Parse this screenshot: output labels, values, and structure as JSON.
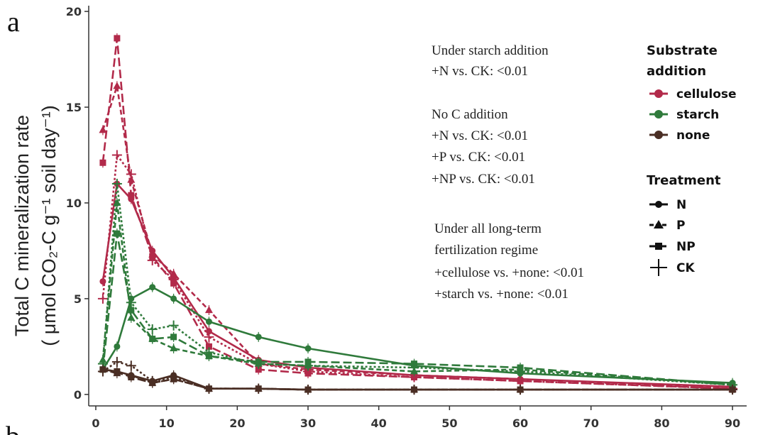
{
  "panel_label": "a",
  "next_panel_label": "b",
  "ylabel_line1": "Total C mineralization rate",
  "ylabel_line2": "( μmol CO₂-C g⁻¹ soil day⁻¹)",
  "annotations": [
    [
      "Under starch addition",
      "+N vs. CK: <0.01"
    ],
    [
      "No C addition",
      "+N vs. CK: <0.01",
      "+P vs. CK: <0.01",
      "+NP vs. CK: <0.01"
    ],
    [
      "Under all long-term",
      "fertilization regime",
      "+cellulose vs. +none: <0.01",
      "+starch vs. +none: <0.01"
    ]
  ],
  "legend": {
    "substrate_title_1": "Substrate",
    "substrate_title_2": "addition",
    "substrates": [
      {
        "label": "cellulose",
        "color": "#b22a4a"
      },
      {
        "label": "starch",
        "color": "#2f7a3b"
      },
      {
        "label": "none",
        "color": "#4a2e24"
      }
    ],
    "treatment_title": "Treatment",
    "treatments": [
      {
        "label": "N",
        "shape": "circle",
        "dash": "solid"
      },
      {
        "label": "P",
        "shape": "triangle",
        "dash": "short-dash"
      },
      {
        "label": "NP",
        "shape": "square",
        "dash": "long-dash"
      },
      {
        "label": "CK",
        "shape": "plus",
        "dash": "dotted"
      }
    ]
  },
  "chart_data": {
    "type": "line",
    "x": [
      1,
      3,
      5,
      8,
      11,
      16,
      23,
      30,
      45,
      60,
      90
    ],
    "xticks": [
      0,
      10,
      20,
      30,
      40,
      50,
      60,
      70,
      80,
      90
    ],
    "yticks": [
      0,
      5,
      10,
      15,
      20
    ],
    "xlim": [
      -1,
      92
    ],
    "ylim": [
      -0.6,
      20.3
    ],
    "grid": false,
    "legend_position": "right",
    "series": [
      {
        "substrate": "cellulose",
        "treatment": "N",
        "values": [
          5.9,
          11.0,
          10.2,
          7.5,
          6.1,
          3.3,
          1.8,
          1.4,
          1.0,
          0.8,
          0.4
        ]
      },
      {
        "substrate": "cellulose",
        "treatment": "P",
        "values": [
          13.8,
          16.1,
          11.2,
          7.3,
          6.3,
          4.4,
          1.6,
          1.3,
          1.0,
          0.8,
          0.3
        ]
      },
      {
        "substrate": "cellulose",
        "treatment": "NP",
        "values": [
          12.1,
          18.6,
          10.4,
          7.2,
          5.8,
          2.5,
          1.3,
          1.1,
          0.9,
          0.7,
          0.3
        ]
      },
      {
        "substrate": "cellulose",
        "treatment": "CK",
        "values": [
          5.0,
          12.5,
          11.5,
          7.0,
          6.0,
          3.0,
          1.6,
          1.2,
          0.9,
          0.7,
          0.3
        ]
      },
      {
        "substrate": "starch",
        "treatment": "N",
        "values": [
          1.3,
          2.5,
          5.0,
          5.6,
          5.0,
          3.8,
          3.0,
          2.4,
          1.5,
          1.1,
          0.6
        ]
      },
      {
        "substrate": "starch",
        "treatment": "P",
        "values": [
          1.8,
          10.0,
          4.0,
          2.9,
          2.4,
          2.0,
          1.6,
          1.5,
          1.2,
          1.3,
          0.5
        ]
      },
      {
        "substrate": "starch",
        "treatment": "NP",
        "values": [
          1.3,
          8.4,
          4.4,
          2.9,
          3.0,
          2.0,
          1.7,
          1.7,
          1.6,
          1.4,
          0.5
        ]
      },
      {
        "substrate": "starch",
        "treatment": "CK",
        "values": [
          1.6,
          11.0,
          4.8,
          3.4,
          3.6,
          2.2,
          1.6,
          1.5,
          1.4,
          1.2,
          0.5
        ]
      },
      {
        "substrate": "none",
        "treatment": "N",
        "values": [
          1.3,
          1.2,
          1.0,
          0.7,
          1.0,
          0.3,
          0.3,
          0.25,
          0.25,
          0.25,
          0.25
        ]
      },
      {
        "substrate": "none",
        "treatment": "P",
        "values": [
          1.3,
          1.1,
          1.0,
          0.6,
          0.8,
          0.3,
          0.3,
          0.25,
          0.25,
          0.25,
          0.25
        ]
      },
      {
        "substrate": "none",
        "treatment": "NP",
        "values": [
          1.3,
          1.2,
          0.9,
          0.6,
          0.8,
          0.3,
          0.3,
          0.25,
          0.25,
          0.25,
          0.25
        ]
      },
      {
        "substrate": "none",
        "treatment": "CK",
        "values": [
          1.2,
          1.7,
          1.5,
          0.7,
          0.9,
          0.3,
          0.3,
          0.25,
          0.25,
          0.25,
          0.25
        ]
      }
    ]
  }
}
